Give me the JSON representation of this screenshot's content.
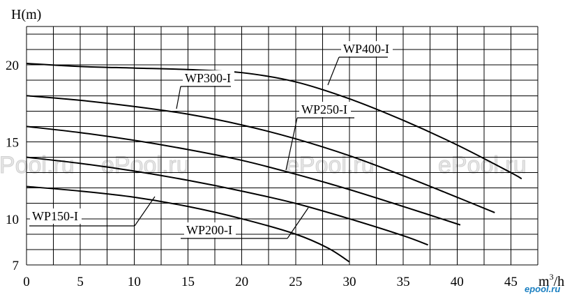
{
  "chart_data": {
    "type": "line",
    "xlabel": "m³/h",
    "xlabel_base": "m",
    "xlabel_sup": "3",
    "xlabel_unit": "/h",
    "ylabel": "H(m)",
    "xlim": [
      0,
      47.5
    ],
    "ylim": [
      7,
      22.5
    ],
    "x_ticks": [
      0,
      5,
      10,
      15,
      20,
      25,
      30,
      35,
      40,
      45
    ],
    "y_ticks": [
      7,
      10,
      15,
      20
    ],
    "grid": true,
    "series": [
      {
        "name": "WP400-I",
        "x": [
          0,
          5,
          10,
          15,
          20,
          25,
          30,
          35,
          40,
          45,
          46
        ],
        "y": [
          20.1,
          19.9,
          19.8,
          19.7,
          19.5,
          18.9,
          17.8,
          16.4,
          14.8,
          13.0,
          12.6
        ]
      },
      {
        "name": "WP300-I",
        "x": [
          0,
          5,
          10,
          15,
          20,
          25,
          30,
          35,
          40,
          43.5
        ],
        "y": [
          18.0,
          17.7,
          17.3,
          16.8,
          16.1,
          15.2,
          14.1,
          12.8,
          11.4,
          10.4
        ]
      },
      {
        "name": "WP250-I",
        "x": [
          0,
          5,
          10,
          15,
          20,
          25,
          30,
          35,
          40.3
        ],
        "y": [
          16.0,
          15.6,
          15.1,
          14.5,
          13.8,
          12.9,
          11.9,
          10.8,
          9.6
        ]
      },
      {
        "name": "WP200-I",
        "x": [
          0,
          5,
          10,
          15,
          20,
          25,
          30,
          35,
          37.3
        ],
        "y": [
          14.0,
          13.6,
          13.1,
          12.5,
          11.8,
          11.0,
          10.0,
          8.9,
          8.3
        ]
      },
      {
        "name": "WP150-I",
        "x": [
          0,
          5,
          10,
          15,
          20,
          25,
          28,
          30
        ],
        "y": [
          12.1,
          11.8,
          11.4,
          10.8,
          10.0,
          9.0,
          8.1,
          7.2
        ]
      }
    ]
  },
  "watermarks": [
    "ePool.ru",
    "ePool.ru",
    "ePool.ru",
    "ePool.ru"
  ],
  "logo_text": "epool.ru"
}
